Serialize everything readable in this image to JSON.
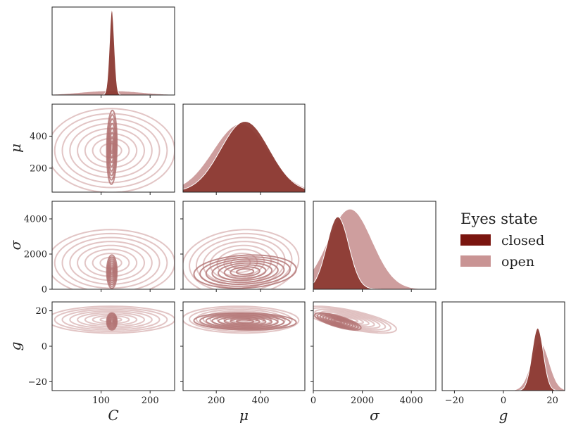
{
  "chart_data": {
    "type": "corner-kde",
    "variables": [
      {
        "key": "C",
        "label": "C",
        "range": [
          0,
          250
        ],
        "ticks": [
          100,
          200
        ]
      },
      {
        "key": "mu",
        "label": "μ",
        "range": [
          50,
          600
        ],
        "ticks": [
          200,
          400
        ]
      },
      {
        "key": "sigma",
        "label": "σ",
        "range": [
          0,
          5000
        ],
        "ticks": [
          0,
          2000,
          4000
        ]
      },
      {
        "key": "g",
        "label": "g",
        "range": [
          -25,
          25
        ],
        "ticks": [
          -20,
          0,
          20
        ]
      }
    ],
    "legend": {
      "title": "Eyes state",
      "placement": "right",
      "entries": [
        {
          "name": "closed",
          "color": "#7a150f"
        },
        {
          "name": "open",
          "color": "#c99494"
        }
      ]
    },
    "series": [
      {
        "name": "closed",
        "color": "#8c3a33",
        "contour_color": "#b27272",
        "means": {
          "C": 122,
          "mu": 330,
          "sigma": 1000,
          "g": 14
        },
        "stds": {
          "C": 5,
          "mu": 110,
          "sigma": 450,
          "g": 2.3
        },
        "corr": {
          "C,mu": 0.1,
          "C,sigma": 0.0,
          "C,g": 0.0,
          "mu,sigma": 0.15,
          "mu,g": -0.1,
          "sigma,g": -0.75
        },
        "diag_peaks": {
          "C": 1.0,
          "mu": 0.82,
          "sigma": 0.84,
          "g": 0.72
        }
      },
      {
        "name": "open",
        "color": "#c99494",
        "contour_color": "#dbb6b6",
        "means": {
          "C": 120,
          "mu": 310,
          "sigma": 1500,
          "g": 15
        },
        "stds": {
          "C": 62,
          "mu": 125,
          "sigma": 900,
          "g": 3.6
        },
        "corr": {
          "C,mu": 0.0,
          "C,sigma": 0.0,
          "C,g": 0.0,
          "mu,sigma": 0.1,
          "mu,g": -0.05,
          "sigma,g": -0.7
        },
        "diag_peaks": {
          "C": 0.05,
          "mu": 0.79,
          "sigma": 0.93,
          "g": 0.55
        }
      }
    ]
  }
}
